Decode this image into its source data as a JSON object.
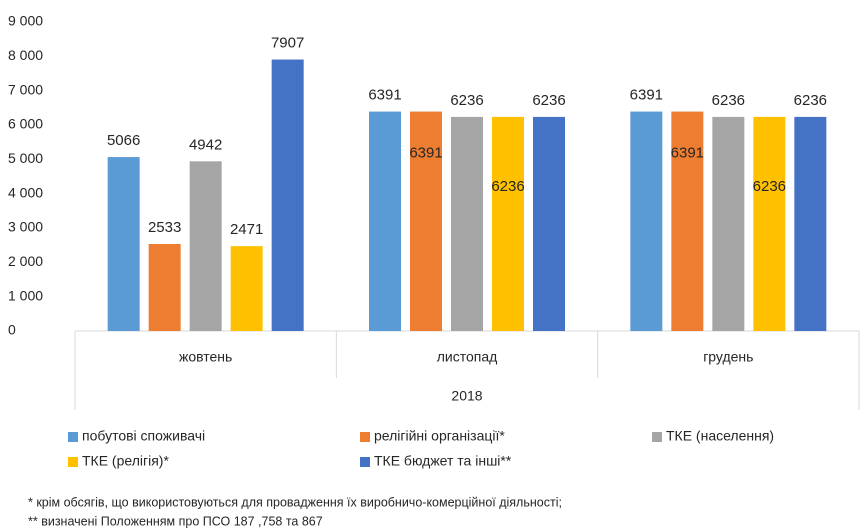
{
  "chart_data": {
    "type": "bar",
    "xlabel": "2018",
    "categories": [
      "жовтень",
      "листопад",
      "грудень"
    ],
    "series": [
      {
        "name": "побутові споживачі",
        "color": "#5b9bd5",
        "values": [
          5066,
          6391,
          6391
        ]
      },
      {
        "name": "релігійні організації*",
        "color": "#ed7d31",
        "values": [
          2533,
          6391,
          6391
        ]
      },
      {
        "name": "ТКЕ (населення)",
        "color": "#a5a5a5",
        "values": [
          4942,
          6236,
          6236
        ]
      },
      {
        "name": "ТКЕ (релігія)*",
        "color": "#ffc000",
        "values": [
          2471,
          6236,
          6236
        ]
      },
      {
        "name": "ТКЕ бюджет та інші**",
        "color": "#4472c4",
        "values": [
          7907,
          6236,
          6236
        ]
      }
    ],
    "ylim": [
      0,
      9000
    ],
    "yticks": [
      0,
      {
        "value": 1000,
        "label": "1 000"
      },
      {
        "value": 2000,
        "label": "2 000"
      },
      {
        "value": 3000,
        "label": "3 000"
      },
      {
        "value": 4000,
        "label": "4 000"
      },
      {
        "value": 5000,
        "label": "5 000"
      },
      {
        "value": 6000,
        "label": "6 000"
      },
      {
        "value": 7000,
        "label": "7 000"
      },
      {
        "value": 8000,
        "label": "8 000"
      },
      {
        "value": 9000,
        "label": "9 000"
      }
    ],
    "grid": false,
    "legend": "bottom",
    "notes": [
      "* крім обсягів, що використовуються для провадження їх виробничо-комерційної діяльності;",
      "** визначені Положенням про ПСО 187 ,758 та 867"
    ]
  }
}
